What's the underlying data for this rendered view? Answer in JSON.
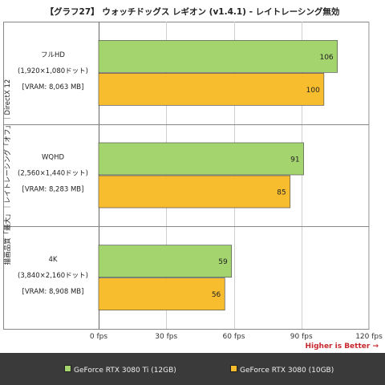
{
  "chart_data": {
    "type": "bar",
    "orientation": "horizontal",
    "title": "【グラフ27】 ウォッチドッグス レギオン (v1.4.1) - レイトレーシング無効",
    "ylabel": "描画品質「最大」｜レイトレーシング「オフ」｜DirectX 12",
    "xlim": [
      0,
      120
    ],
    "x_ticks": [
      0,
      30,
      60,
      90,
      120
    ],
    "x_tick_labels": [
      "0 fps",
      "30 fps",
      "60 fps",
      "90 fps",
      "120 fps"
    ],
    "grid": true,
    "legend_position": "bottom",
    "categories": [
      {
        "lines": [
          "フルHD",
          "(1,920×1,080ドット)",
          "[VRAM: 8,063 MB]"
        ]
      },
      {
        "lines": [
          "WQHD",
          "(2,560×1,440ドット)",
          "[VRAM: 8,283 MB]"
        ]
      },
      {
        "lines": [
          "4K",
          "(3,840×2,160ドット)",
          "[VRAM: 8,908 MB]"
        ]
      }
    ],
    "series": [
      {
        "name": "GeForce RTX 3080 Ti (12GB)",
        "color": "#a3d46e",
        "values": [
          106,
          91,
          59
        ]
      },
      {
        "name": "GeForce RTX 3080 (10GB)",
        "color": "#f7bd2e",
        "values": [
          100,
          85,
          56
        ]
      }
    ],
    "annotation": "Higher is Better →"
  }
}
